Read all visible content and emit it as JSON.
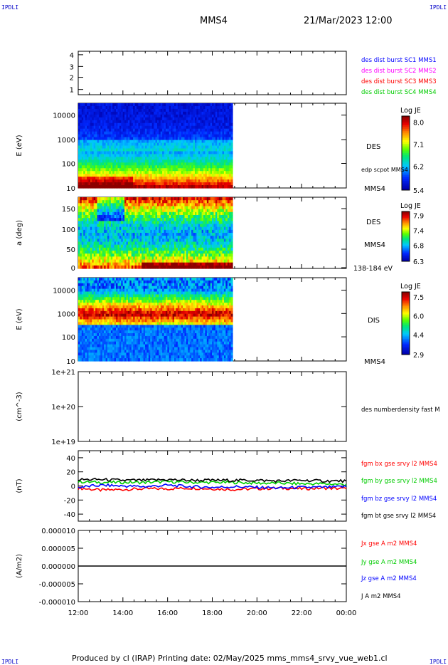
{
  "corners": {
    "tl": "IPDLI",
    "tr": "IPDLI",
    "bl": "IPDLI",
    "br": "IPDLI"
  },
  "header": {
    "spacecraft": "MMS4",
    "datetime": "21/Mar/2023 12:00"
  },
  "footer": "Produced by cl (IRAP)   Printing date: 02/May/2025   mms_mms4_srvy_vue_web1.cl",
  "colors": {
    "burst1": "#0000ff",
    "burst2": "#ff00ff",
    "burst3": "#ff0000",
    "burst4": "#00cc00",
    "bx": "#ff0000",
    "by": "#00cc00",
    "bz": "#0000ff",
    "bt": "#000000"
  },
  "chart_data": [
    {
      "type": "line",
      "ylabel": "",
      "yticks": [
        "4",
        "3",
        "2",
        "1"
      ],
      "legend": [
        "des dist burst SC1 MMS1",
        "des dist burst SC2 MMS2",
        "des dist burst SC3 MMS3",
        "des dist burst SC4 MMS4"
      ]
    },
    {
      "type": "heatmap",
      "ylabel": "E (eV)",
      "yscale": "log",
      "yticks": [
        "10000",
        "1000",
        "100",
        "10"
      ],
      "right_labels": [
        "DES",
        "edp scpot MMS4",
        "MMS4"
      ],
      "colorbar": {
        "title": "Log JE",
        "ticks": [
          "8.0",
          "7.1",
          "6.2",
          "5.4"
        ]
      }
    },
    {
      "type": "heatmap",
      "ylabel": "a (deg)",
      "yticks": [
        "150",
        "100",
        "50",
        "0"
      ],
      "right_labels": [
        "DES",
        "MMS4",
        "138-184 eV"
      ],
      "colorbar": {
        "title": "Log JE",
        "ticks": [
          "7.9",
          "7.4",
          "6.8",
          "6.3"
        ]
      }
    },
    {
      "type": "heatmap",
      "ylabel": "E (eV)",
      "yscale": "log",
      "yticks": [
        "10000",
        "1000",
        "100",
        "10"
      ],
      "right_labels": [
        "DIS",
        "MMS4"
      ],
      "colorbar": {
        "title": "Log JE",
        "ticks": [
          "7.5",
          "6.0",
          "4.4",
          "2.9"
        ]
      }
    },
    {
      "type": "line",
      "ylabel": "(cm^-3)",
      "yscale": "log",
      "yticks": [
        "1e+21",
        "1e+20",
        "1e+19"
      ],
      "legend": [
        "des numberdensity fast M"
      ]
    },
    {
      "type": "line",
      "ylabel": "(nT)",
      "yticks": [
        "40",
        "20",
        "0",
        "-20",
        "-40"
      ],
      "ylim": [
        -50,
        50
      ],
      "legend": [
        "fgm bx gse srvy l2 MMS4",
        "fgm by gse srvy l2 MMS4",
        "fgm bz gse srvy l2 MMS4",
        "fgm bt gse srvy l2 MMS4"
      ],
      "series": [
        {
          "name": "fgm bx gse srvy l2 MMS4",
          "x": [
            12,
            13,
            14,
            15,
            16,
            17,
            18,
            19,
            20,
            21,
            22,
            23,
            24
          ],
          "values": [
            -3,
            -6,
            -5,
            -4,
            -4,
            -3,
            -4,
            -5,
            -4,
            -3,
            -4,
            -3,
            -4
          ]
        },
        {
          "name": "fgm by gse srvy l2 MMS4",
          "x": [
            12,
            13,
            14,
            15,
            16,
            17,
            18,
            19,
            20,
            21,
            22,
            23,
            24
          ],
          "values": [
            6,
            5,
            5,
            5,
            6,
            5,
            5,
            5,
            4,
            4,
            3,
            3,
            2
          ]
        },
        {
          "name": "fgm bz gse srvy l2 MMS4",
          "x": [
            12,
            13,
            14,
            15,
            16,
            17,
            18,
            19,
            20,
            21,
            22,
            23,
            24
          ],
          "values": [
            -2,
            1,
            0,
            -1,
            1,
            -1,
            -2,
            -1,
            -2,
            -3,
            -2,
            -2,
            -1
          ]
        },
        {
          "name": "fgm bt gse srvy l2 MMS4",
          "x": [
            12,
            13,
            14,
            15,
            16,
            17,
            18,
            19,
            20,
            21,
            22,
            23,
            24
          ],
          "values": [
            9,
            9,
            8,
            8,
            9,
            8,
            8,
            8,
            8,
            7,
            8,
            7,
            7
          ]
        }
      ]
    },
    {
      "type": "line",
      "ylabel": "(A/m2)",
      "yticks": [
        "0.000010",
        "0.000005",
        "0.000000",
        "-0.000005",
        "-0.000010"
      ],
      "ylim": [
        -1e-05,
        1e-05
      ],
      "legend": [
        "Jx gse A m2 MMS4",
        "Jy gse A m2 MMS4",
        "Jz gse A m2 MMS4",
        "J A m2 MMS4"
      ],
      "series": [
        {
          "name": "J A m2 MMS4",
          "x": [
            12,
            14,
            16,
            18,
            20,
            22,
            24
          ],
          "values": [
            0,
            0,
            0,
            0,
            0,
            0,
            0
          ]
        }
      ]
    }
  ],
  "xaxis": {
    "ticks": [
      "12:00",
      "14:00",
      "16:00",
      "18:00",
      "20:00",
      "22:00",
      "00:00"
    ]
  }
}
